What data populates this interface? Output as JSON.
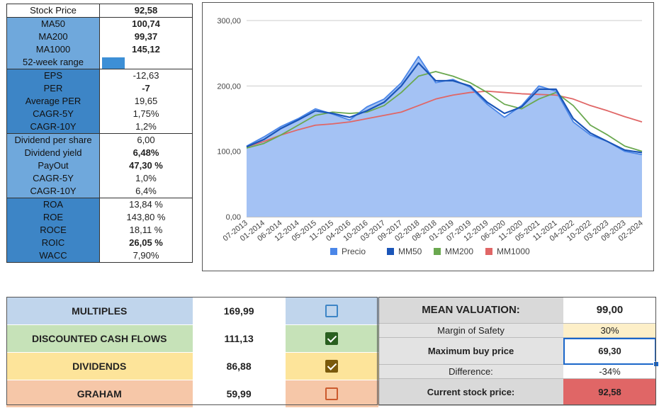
{
  "metrics": {
    "stock_price": {
      "label": "Stock Price",
      "value": "92,58"
    },
    "ma50": {
      "label": "MA50",
      "value": "100,74"
    },
    "ma200": {
      "label": "MA200",
      "value": "99,37"
    },
    "ma1000": {
      "label": "MA1000",
      "value": "145,12"
    },
    "range52": {
      "label": "52-week range"
    },
    "eps": {
      "label": "EPS",
      "value": "-12,63"
    },
    "per": {
      "label": "PER",
      "value": "-7"
    },
    "avg_per": {
      "label": "Average PER",
      "value": "19,65"
    },
    "eps_cagr5": {
      "label": "CAGR-5Y",
      "value": "1,75%"
    },
    "eps_cagr10": {
      "label": "CAGR-10Y",
      "value": "1,2%"
    },
    "dps": {
      "label": "Dividend per share",
      "value": "6,00"
    },
    "div_yield": {
      "label": "Dividend yield",
      "value": "6,48%"
    },
    "payout": {
      "label": "PayOut",
      "value": "47,30 %"
    },
    "div_cagr5": {
      "label": "CAGR-5Y",
      "value": "1,0%"
    },
    "div_cagr10": {
      "label": "CAGR-10Y",
      "value": "6,4%"
    },
    "roa": {
      "label": "ROA",
      "value": "13,84 %"
    },
    "roe": {
      "label": "ROE",
      "value": "143,80 %"
    },
    "roce": {
      "label": "ROCE",
      "value": "18,11 %"
    },
    "roic": {
      "label": "ROIC",
      "value": "26,05 %"
    },
    "wacc": {
      "label": "WACC",
      "value": "7,90%"
    }
  },
  "colors": {
    "precio": "#4a86e8",
    "precio_fill": "#a4c2f4",
    "mm50": "#1a55b8",
    "mm200": "#6aa84f",
    "mm1000": "#e06666"
  },
  "chart_data": {
    "type": "line",
    "title": "",
    "xlabel": "",
    "ylabel": "",
    "ylim": [
      0,
      300
    ],
    "yticks": [
      "0,00",
      "100,00",
      "200,00",
      "300,00"
    ],
    "xticks": [
      "07-2013",
      "01-2014",
      "06-2014",
      "12-2014",
      "05-2015",
      "11-2015",
      "04-2016",
      "10-2016",
      "03-2017",
      "09-2017",
      "02-2018",
      "08-2018",
      "01-2019",
      "07-2019",
      "12-2019",
      "06-2020",
      "11-2020",
      "05-2021",
      "11-2021",
      "04-2022",
      "10-2022",
      "03-2023",
      "09-2023",
      "02-2024"
    ],
    "legend_position": "bottom",
    "series": [
      {
        "name": "Precio",
        "values": [
          108,
          122,
          138,
          150,
          165,
          157,
          148,
          168,
          180,
          205,
          245,
          205,
          210,
          198,
          172,
          152,
          170,
          200,
          192,
          145,
          125,
          115,
          100,
          95
        ]
      },
      {
        "name": "MM50",
        "values": [
          107,
          118,
          135,
          148,
          162,
          158,
          152,
          162,
          175,
          200,
          235,
          208,
          208,
          200,
          175,
          158,
          168,
          195,
          195,
          150,
          128,
          115,
          102,
          98
        ]
      },
      {
        "name": "MM200",
        "values": [
          105,
          112,
          125,
          140,
          155,
          160,
          158,
          160,
          170,
          190,
          215,
          222,
          215,
          205,
          190,
          172,
          165,
          180,
          190,
          170,
          140,
          125,
          108,
          100
        ]
      },
      {
        "name": "MM1000",
        "values": [
          107,
          115,
          125,
          133,
          140,
          142,
          145,
          150,
          155,
          160,
          170,
          180,
          186,
          190,
          192,
          190,
          188,
          187,
          186,
          180,
          170,
          162,
          153,
          145
        ]
      }
    ]
  },
  "valuation": {
    "methods": [
      {
        "name": "MULTIPLES",
        "value": "169,99",
        "checked": false
      },
      {
        "name": "DISCOUNTED CASH FLOWS",
        "value": "111,13",
        "checked": true
      },
      {
        "name": "DIVIDENDS",
        "value": "86,88",
        "checked": true
      },
      {
        "name": "GRAHAM",
        "value": "59,99",
        "checked": false
      }
    ],
    "mean": {
      "label": "MEAN VALUATION:",
      "value": "99,00"
    },
    "margin": {
      "label": "Margin of Safety",
      "value": "30%"
    },
    "max_buy": {
      "label": "Maximum buy price",
      "value": "69,30"
    },
    "difference": {
      "label": "Difference:",
      "value": "-34%"
    },
    "current": {
      "label": "Current stock price:",
      "value": "92,58"
    }
  }
}
